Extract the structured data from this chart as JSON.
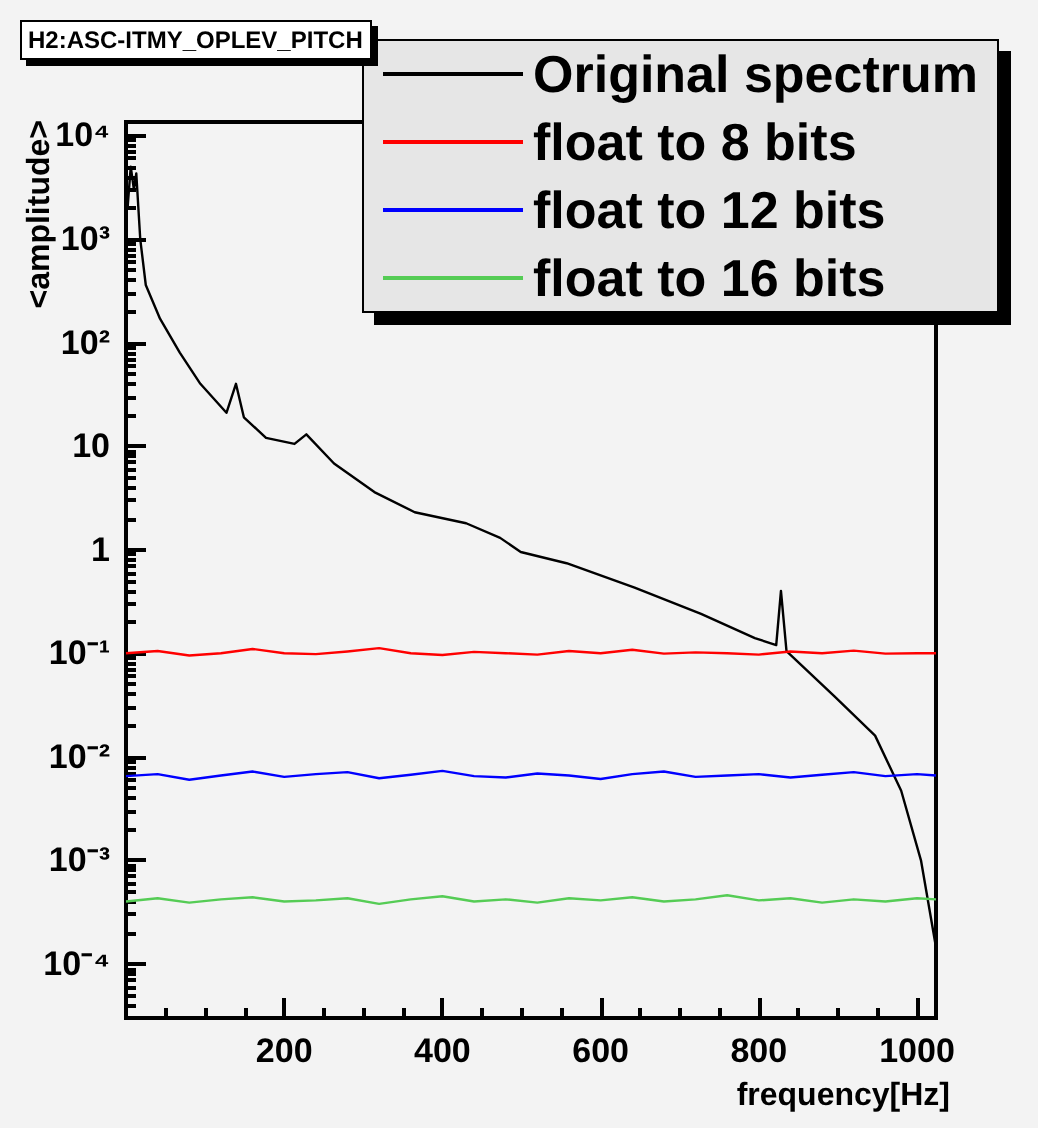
{
  "chart_data": {
    "type": "line",
    "title": "H2:ASC-ITMY_OPLEV_PITCH",
    "xlabel": "frequency[Hz]",
    "ylabel": "<amplitude>",
    "xlim": [
      0,
      1024
    ],
    "xticks": [
      200,
      400,
      600,
      800,
      1000
    ],
    "ylim": [
      3e-05,
      13500
    ],
    "yticks": [
      {
        "value": 0.0001,
        "label": "10⁻⁴"
      },
      {
        "value": 0.001,
        "label": "10⁻³"
      },
      {
        "value": 0.01,
        "label": "10⁻²"
      },
      {
        "value": 0.1,
        "label": "10⁻¹"
      },
      1,
      10,
      {
        "value": 100,
        "label": "10²"
      },
      {
        "value": 1000,
        "label": "10³"
      },
      {
        "value": 10000,
        "label": "10⁴"
      }
    ],
    "log": "y",
    "grid": false,
    "legend": "top right",
    "marker": "none",
    "line_style": "solid",
    "series": [
      {
        "name": "Original spectrum",
        "color": "#000000",
        "x": [
          2,
          6,
          10,
          13,
          18,
          25,
          43,
          68,
          94,
          127,
          139,
          149,
          177,
          213,
          228,
          263,
          314,
          365,
          430,
          473,
          499,
          557,
          643,
          727,
          795,
          822,
          828,
          835,
          896,
          947,
          980,
          1005,
          1023,
          1024
        ],
        "values": [
          2000,
          5000,
          3000,
          4300,
          1000,
          360,
          170,
          80,
          40,
          21,
          40,
          19,
          12,
          10.5,
          13,
          6.8,
          3.6,
          2.3,
          1.8,
          1.3,
          0.95,
          0.74,
          0.43,
          0.24,
          0.14,
          0.12,
          0.4,
          0.105,
          0.038,
          0.016,
          0.0047,
          0.001,
          0.00016,
          3.5e-05
        ]
      },
      {
        "name": "float to 8 bits",
        "color": "#ff0000",
        "x": [
          0,
          40,
          80,
          120,
          160,
          200,
          240,
          280,
          320,
          360,
          400,
          440,
          480,
          520,
          560,
          600,
          640,
          680,
          720,
          760,
          800,
          840,
          880,
          920,
          960,
          1000,
          1024
        ],
        "values": [
          0.1,
          0.105,
          0.095,
          0.1,
          0.11,
          0.1,
          0.098,
          0.104,
          0.112,
          0.1,
          0.096,
          0.103,
          0.1,
          0.097,
          0.105,
          0.1,
          0.108,
          0.099,
          0.102,
          0.1,
          0.097,
          0.104,
          0.1,
          0.106,
          0.099,
          0.1,
          0.1
        ]
      },
      {
        "name": "float to 12 bits",
        "color": "#0000ff",
        "x": [
          0,
          40,
          80,
          120,
          160,
          200,
          240,
          280,
          320,
          360,
          400,
          440,
          480,
          520,
          560,
          600,
          640,
          680,
          720,
          760,
          800,
          840,
          880,
          920,
          960,
          1000,
          1024
        ],
        "values": [
          0.0065,
          0.0068,
          0.006,
          0.0066,
          0.0072,
          0.0064,
          0.0068,
          0.0071,
          0.0062,
          0.0067,
          0.0073,
          0.0065,
          0.0063,
          0.0069,
          0.0066,
          0.0061,
          0.0068,
          0.0072,
          0.0064,
          0.0066,
          0.0068,
          0.0063,
          0.0067,
          0.0071,
          0.0065,
          0.0068,
          0.0066
        ]
      },
      {
        "name": "float to 16 bits",
        "color": "#55cc55",
        "x": [
          0,
          40,
          80,
          120,
          160,
          200,
          240,
          280,
          320,
          360,
          400,
          440,
          480,
          520,
          560,
          600,
          640,
          680,
          720,
          760,
          800,
          840,
          880,
          920,
          960,
          1000,
          1024
        ],
        "values": [
          0.0004,
          0.00043,
          0.00039,
          0.00042,
          0.00044,
          0.0004,
          0.00041,
          0.00043,
          0.00038,
          0.00042,
          0.00045,
          0.0004,
          0.00042,
          0.00039,
          0.00043,
          0.00041,
          0.00044,
          0.0004,
          0.00042,
          0.00046,
          0.00041,
          0.00043,
          0.00039,
          0.00042,
          0.0004,
          0.00043,
          0.00042
        ]
      }
    ]
  }
}
